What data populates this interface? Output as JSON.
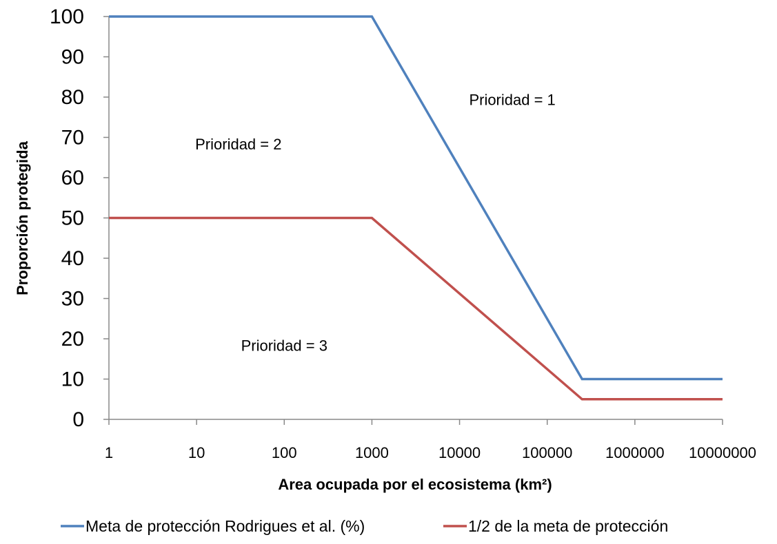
{
  "chart_data": {
    "type": "line",
    "xscale": "log",
    "xlim": [
      1,
      10000000
    ],
    "ylim": [
      0,
      100
    ],
    "x_ticks": [
      "1",
      "10",
      "100",
      "1000",
      "10000",
      "100000",
      "1000000",
      "10000000"
    ],
    "y_ticks": [
      "0",
      "10",
      "20",
      "30",
      "40",
      "50",
      "60",
      "70",
      "80",
      "90",
      "100"
    ],
    "xlabel": "Area ocupada por el ecosistema (km²)",
    "ylabel": "Proporción protegida",
    "grid": false,
    "legend_position": "bottom",
    "series": [
      {
        "name": "Meta de protección Rodrigues et al. (%)",
        "color": "#4f81bd",
        "x": [
          1,
          1000,
          250000,
          10000000
        ],
        "y": [
          100,
          100,
          10,
          10
        ]
      },
      {
        "name": "1/2 de la meta de protección",
        "color": "#c0504d",
        "x": [
          1,
          1000,
          250000,
          10000000
        ],
        "y": [
          50,
          50,
          5,
          5
        ]
      }
    ],
    "annotations": [
      {
        "text": "Prioridad = 1",
        "x": 40000,
        "y": 78
      },
      {
        "text": "Prioridad = 2",
        "x": 30,
        "y": 67
      },
      {
        "text": "Prioridad = 3",
        "x": 100,
        "y": 17
      }
    ]
  }
}
